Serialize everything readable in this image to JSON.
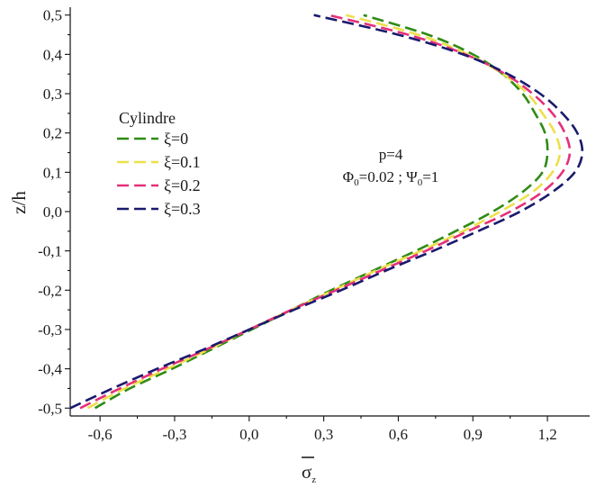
{
  "chart_data": {
    "type": "line",
    "xlabel": "σ",
    "xlabel_subscript": "z",
    "ylabel": "z/h",
    "xlim": [
      -0.72,
      1.37
    ],
    "ylim": [
      -0.52,
      0.52
    ],
    "x_ticks": [
      -0.6,
      -0.3,
      0.0,
      0.3,
      0.6,
      0.9,
      1.2
    ],
    "x_tick_labels": [
      "-0,6",
      "-0,3",
      "0,0",
      "0,3",
      "0,6",
      "0,9",
      "1,2"
    ],
    "y_ticks": [
      -0.5,
      -0.4,
      -0.3,
      -0.2,
      -0.1,
      0.0,
      0.1,
      0.2,
      0.3,
      0.4,
      0.5
    ],
    "y_tick_labels": [
      "-0,5",
      "-0,4",
      "-0,3",
      "-0,2",
      "-0,1",
      "0,0",
      "0,1",
      "0,2",
      "0,3",
      "0,4",
      "0,5"
    ],
    "grid": false,
    "legend": {
      "title": "Cylindre",
      "placement": "left"
    },
    "annotation": {
      "line1": "p=4",
      "line2_phi": "Φ",
      "line2_phi_sub": "0",
      "line2_phi_val": "=0.02 ; ",
      "line2_psi": "Ψ",
      "line2_psi_sub": "0",
      "line2_psi_val": "=1"
    },
    "series": [
      {
        "name": "ξ=0",
        "color": "#2e8b14",
        "points": [
          [
            -0.62,
            -0.5
          ],
          [
            -0.48,
            -0.45
          ],
          [
            -0.31,
            -0.4
          ],
          [
            -0.15,
            -0.35
          ],
          [
            0.01,
            -0.3
          ],
          [
            0.17,
            -0.25
          ],
          [
            0.33,
            -0.2
          ],
          [
            0.5,
            -0.15
          ],
          [
            0.67,
            -0.1
          ],
          [
            0.83,
            -0.05
          ],
          [
            0.98,
            0.0
          ],
          [
            1.1,
            0.05
          ],
          [
            1.18,
            0.1
          ],
          [
            1.2,
            0.15
          ],
          [
            1.19,
            0.2
          ],
          [
            1.15,
            0.25
          ],
          [
            1.1,
            0.3
          ],
          [
            1.02,
            0.35
          ],
          [
            0.9,
            0.4
          ],
          [
            0.72,
            0.45
          ],
          [
            0.46,
            0.5
          ]
        ]
      },
      {
        "name": "ξ=0.1",
        "color": "#ece04a",
        "points": [
          [
            -0.65,
            -0.5
          ],
          [
            -0.5,
            -0.45
          ],
          [
            -0.33,
            -0.4
          ],
          [
            -0.16,
            -0.35
          ],
          [
            0.0,
            -0.3
          ],
          [
            0.17,
            -0.25
          ],
          [
            0.34,
            -0.2
          ],
          [
            0.51,
            -0.15
          ],
          [
            0.69,
            -0.1
          ],
          [
            0.86,
            -0.05
          ],
          [
            1.01,
            0.0
          ],
          [
            1.14,
            0.05
          ],
          [
            1.22,
            0.1
          ],
          [
            1.25,
            0.15
          ],
          [
            1.23,
            0.2
          ],
          [
            1.18,
            0.25
          ],
          [
            1.12,
            0.3
          ],
          [
            1.02,
            0.35
          ],
          [
            0.88,
            0.4
          ],
          [
            0.68,
            0.45
          ],
          [
            0.39,
            0.5
          ]
        ]
      },
      {
        "name": "ξ=0.2",
        "color": "#e5307a",
        "points": [
          [
            -0.68,
            -0.5
          ],
          [
            -0.52,
            -0.45
          ],
          [
            -0.35,
            -0.4
          ],
          [
            -0.17,
            -0.35
          ],
          [
            0.0,
            -0.3
          ],
          [
            0.17,
            -0.25
          ],
          [
            0.35,
            -0.2
          ],
          [
            0.53,
            -0.15
          ],
          [
            0.71,
            -0.1
          ],
          [
            0.88,
            -0.05
          ],
          [
            1.05,
            0.0
          ],
          [
            1.18,
            0.05
          ],
          [
            1.26,
            0.1
          ],
          [
            1.29,
            0.15
          ],
          [
            1.27,
            0.2
          ],
          [
            1.22,
            0.25
          ],
          [
            1.14,
            0.3
          ],
          [
            1.03,
            0.35
          ],
          [
            0.87,
            0.4
          ],
          [
            0.64,
            0.45
          ],
          [
            0.32,
            0.5
          ]
        ]
      },
      {
        "name": "ξ=0.3",
        "color": "#1a1a6e",
        "points": [
          [
            -0.72,
            -0.5
          ],
          [
            -0.55,
            -0.45
          ],
          [
            -0.37,
            -0.4
          ],
          [
            -0.18,
            -0.35
          ],
          [
            0.0,
            -0.3
          ],
          [
            0.18,
            -0.25
          ],
          [
            0.37,
            -0.2
          ],
          [
            0.55,
            -0.15
          ],
          [
            0.74,
            -0.1
          ],
          [
            0.92,
            -0.05
          ],
          [
            1.09,
            0.0
          ],
          [
            1.22,
            0.05
          ],
          [
            1.31,
            0.1
          ],
          [
            1.34,
            0.15
          ],
          [
            1.32,
            0.2
          ],
          [
            1.26,
            0.25
          ],
          [
            1.17,
            0.3
          ],
          [
            1.04,
            0.35
          ],
          [
            0.86,
            0.4
          ],
          [
            0.6,
            0.45
          ],
          [
            0.26,
            0.5
          ]
        ]
      }
    ]
  }
}
